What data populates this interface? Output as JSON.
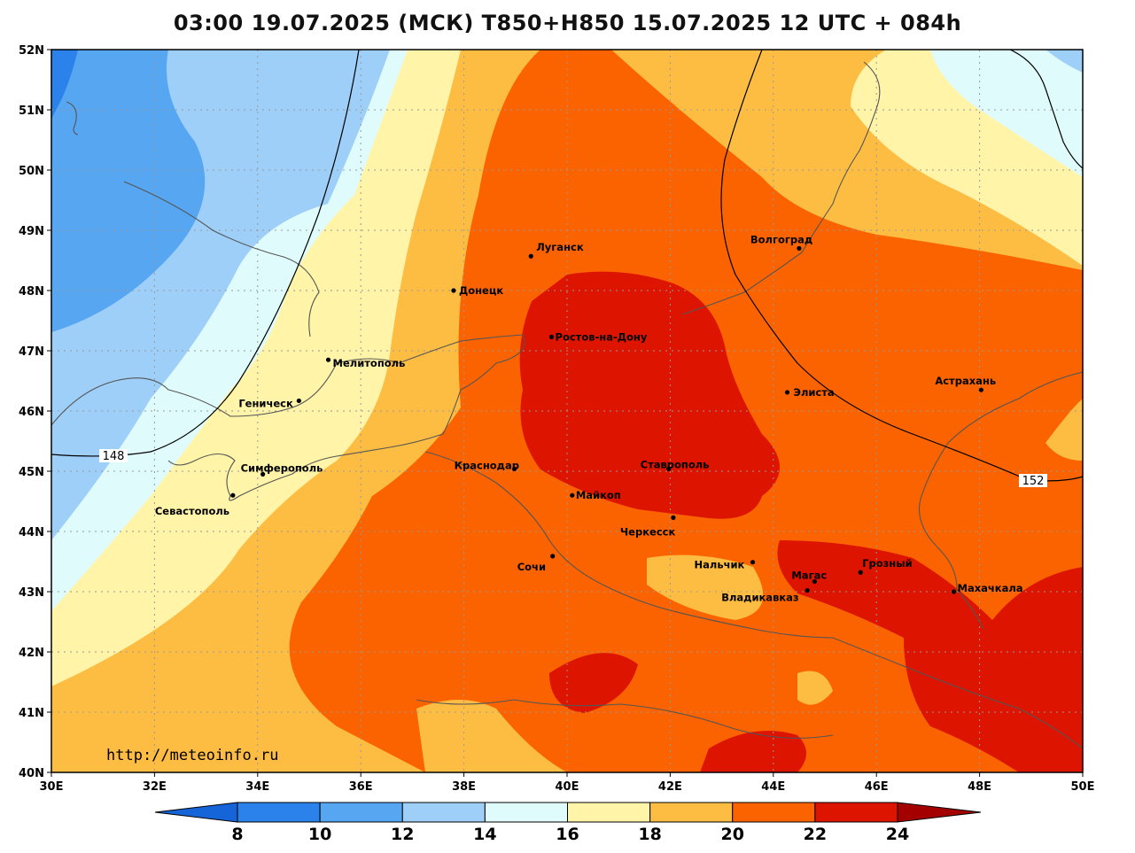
{
  "title": "03:00 19.07.2025 (МСК) T850+H850 15.07.2025 12 UTC + 084h",
  "watermark": "http://meteoinfo.ru",
  "axes": {
    "lat_labels": [
      "52N",
      "51N",
      "50N",
      "49N",
      "48N",
      "47N",
      "46N",
      "45N",
      "44N",
      "43N",
      "42N",
      "41N",
      "40N"
    ],
    "lon_labels": [
      "30E",
      "32E",
      "34E",
      "36E",
      "38E",
      "40E",
      "42E",
      "44E",
      "46E",
      "48E",
      "50E"
    ],
    "lat_range": [
      40,
      52
    ],
    "lon_range": [
      30,
      50
    ],
    "grid": "dotted"
  },
  "colorbar": {
    "labels": [
      "8",
      "10",
      "12",
      "14",
      "16",
      "18",
      "20",
      "22",
      "24"
    ],
    "colors": [
      "#1665d8",
      "#2b82ea",
      "#57a6f2",
      "#9ecff8",
      "#e0fbfc",
      "#fff4a8",
      "#fdbd42",
      "#fb6300",
      "#dd1400",
      "#a50000"
    ]
  },
  "colors": {
    "t12_14": "#9ecff8",
    "t10_12": "#57a6f2",
    "t8_10": "#2b82ea",
    "t14_16": "#e0fbfc",
    "t16_18": "#fff4a8",
    "t18_20": "#fdbd42",
    "t20_22": "#fb6300",
    "t22_24": "#dd1400"
  },
  "contours": [
    {
      "label": "148"
    },
    {
      "label": "152"
    }
  ],
  "cities": [
    {
      "name": "Волгоград",
      "lon": 44.5,
      "lat": 48.7
    },
    {
      "name": "Луганск",
      "lon": 39.3,
      "lat": 48.57
    },
    {
      "name": "Донецк",
      "lon": 37.8,
      "lat": 48.0
    },
    {
      "name": "Ростов-на-Дону",
      "lon": 39.7,
      "lat": 47.23
    },
    {
      "name": "Мелитополь",
      "lon": 35.37,
      "lat": 46.85
    },
    {
      "name": "Геническ",
      "lon": 34.8,
      "lat": 46.17
    },
    {
      "name": "Элиста",
      "lon": 44.27,
      "lat": 46.31
    },
    {
      "name": "Астрахань",
      "lon": 48.03,
      "lat": 46.35
    },
    {
      "name": "Симферополь",
      "lon": 34.1,
      "lat": 44.95
    },
    {
      "name": "Севастополь",
      "lon": 33.52,
      "lat": 44.6
    },
    {
      "name": "Краснодар",
      "lon": 38.98,
      "lat": 45.04
    },
    {
      "name": "Ставрополь",
      "lon": 41.97,
      "lat": 45.04
    },
    {
      "name": "Майкоп",
      "lon": 40.1,
      "lat": 44.6
    },
    {
      "name": "Черкесск",
      "lon": 42.06,
      "lat": 44.23
    },
    {
      "name": "Нальчик",
      "lon": 43.6,
      "lat": 43.49
    },
    {
      "name": "Сочи",
      "lon": 39.72,
      "lat": 43.59
    },
    {
      "name": "Магас",
      "lon": 44.8,
      "lat": 43.17
    },
    {
      "name": "Грозный",
      "lon": 45.69,
      "lat": 43.32
    },
    {
      "name": "Владикавказ",
      "lon": 44.66,
      "lat": 43.02
    },
    {
      "name": "Махачкала",
      "lon": 47.5,
      "lat": 43.0
    }
  ]
}
